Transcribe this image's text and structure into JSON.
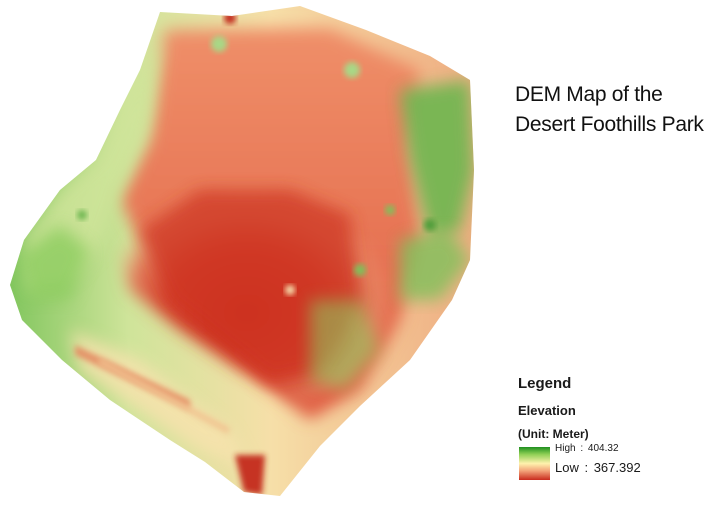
{
  "map": {
    "title_line1": "DEM Map of the",
    "title_line2": "Desert Foothills Park"
  },
  "legend": {
    "heading": "Legend",
    "field": "Elevation",
    "unit": "(Unit: Meter)",
    "high_label": "High",
    "high_value": "404.32",
    "low_label": "Low",
    "low_value": "367.392",
    "high_color": "#1f8f1f",
    "mid_color": "#fff2ad",
    "low_color": "#c92b1e"
  }
}
